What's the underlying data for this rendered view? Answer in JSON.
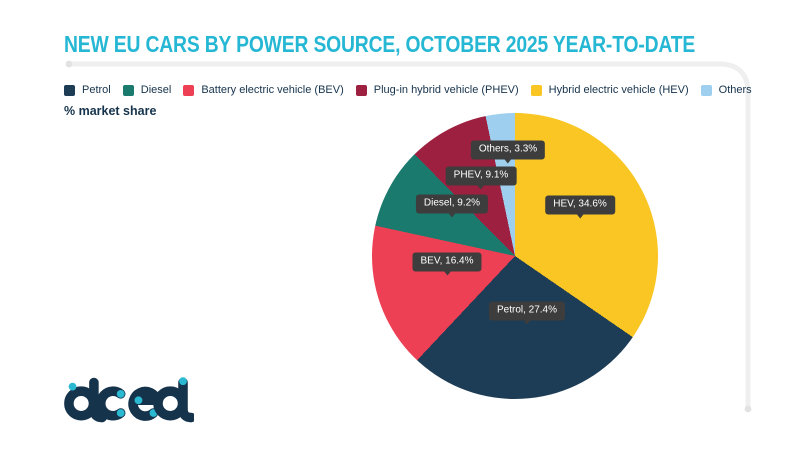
{
  "title": "NEW EU CARS BY POWER SOURCE, OCTOBER 2025 YEAR-TO-DATE",
  "unit_label": "% market share",
  "logo": {
    "text": "acea"
  },
  "colors": {
    "title": "#25b7d3",
    "text_dark": "#16334c",
    "label_box": "#3d3d3d",
    "label_text": "#ffffff",
    "frame_line": "#efefef",
    "frame_dot": "#e2e2e2",
    "background": "#ffffff",
    "logo_navy": "#16334c",
    "logo_cyan": "#2bb9d2"
  },
  "legend_order": [
    1,
    3,
    2,
    4,
    0,
    5
  ],
  "chart_data": {
    "type": "pie",
    "title": "NEW EU CARS BY POWER SOURCE, OCTOBER 2025 YEAR-TO-DATE",
    "unit": "% market share",
    "start_angle_deg": 0,
    "direction": "clockwise",
    "categories": [
      "Petrol",
      "Diesel",
      "Battery electric vehicle (BEV)",
      "Plug-in hybrid vehicle (PHEV)",
      "Hybrid electric vehicle (HEV)",
      "Others"
    ],
    "values": [
      27.4,
      9.2,
      16.4,
      9.1,
      34.6,
      3.3
    ],
    "slices": [
      {
        "id": "hev",
        "name": "HEV",
        "legend_label": "Hybrid electric vehicle (HEV)",
        "value": 34.6,
        "color": "#f9c623",
        "label": "HEV, 34.6%"
      },
      {
        "id": "petrol",
        "name": "Petrol",
        "legend_label": "Petrol",
        "value": 27.4,
        "color": "#1d3c55",
        "label": "Petrol, 27.4%"
      },
      {
        "id": "bev",
        "name": "BEV",
        "legend_label": "Battery electric vehicle (BEV)",
        "value": 16.4,
        "color": "#ee4054",
        "label": "BEV, 16.4%"
      },
      {
        "id": "diesel",
        "name": "Diesel",
        "legend_label": "Diesel",
        "value": 9.2,
        "color": "#1a7a6d",
        "label": "Diesel, 9.2%"
      },
      {
        "id": "phev",
        "name": "PHEV",
        "legend_label": "Plug-in hybrid vehicle (PHEV)",
        "value": 9.1,
        "color": "#9e2040",
        "label": "PHEV, 9.1%"
      },
      {
        "id": "others",
        "name": "Others",
        "legend_label": "Others",
        "value": 3.3,
        "color": "#9ecfee",
        "label": "Others, 3.3%"
      }
    ]
  }
}
